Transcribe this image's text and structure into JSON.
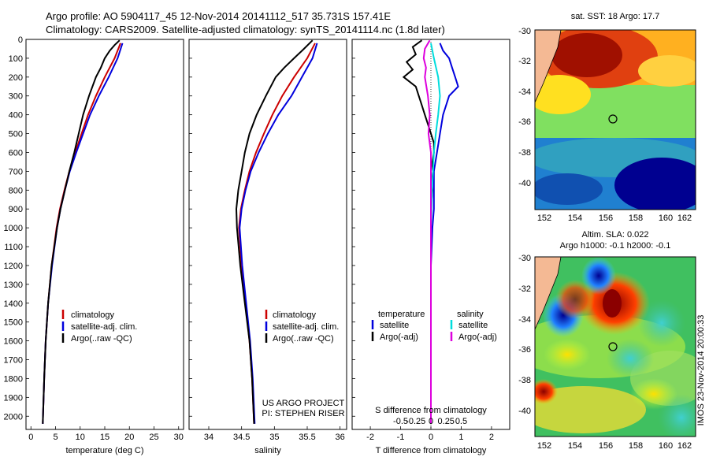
{
  "titles": {
    "line1": "Argo profile: AO 5904117_45 12-Nov-2014 20141112_517 35.731S 157.41E",
    "line2": "Climatology: CARS2009. Satellite-adjusted climatology: synTS_20141114.nc (1.8d later)"
  },
  "colors": {
    "clim": "#cc0000",
    "sat": "#0000dd",
    "argo": "#000000",
    "sal_sat": "#00dddd",
    "sal_argo": "#dd00dd",
    "land": "#f4b994"
  },
  "chart_data": [
    {
      "id": "temperature",
      "type": "line",
      "xlabel": "temperature (deg C)",
      "xlim": [
        -1,
        31
      ],
      "xticks": [
        0,
        5,
        10,
        15,
        20,
        25,
        30
      ],
      "ylim": [
        2070,
        0
      ],
      "yticks": [
        0,
        100,
        200,
        300,
        400,
        500,
        600,
        700,
        800,
        900,
        1000,
        1100,
        1200,
        1300,
        1400,
        1500,
        1600,
        1700,
        1800,
        1900,
        2000
      ],
      "legend": [
        "climatology",
        "satellite-adj. clim.",
        "Argo(..raw -QC)"
      ],
      "series": [
        {
          "name": "climatology",
          "depth": [
            20,
            100,
            200,
            300,
            400,
            500,
            600,
            700,
            800,
            900,
            1000,
            1200,
            1400,
            1600,
            1800,
            2040
          ],
          "values": [
            18.2,
            17.0,
            15.0,
            13.2,
            11.6,
            10.3,
            9.0,
            7.8,
            6.8,
            5.9,
            5.2,
            4.2,
            3.5,
            3.0,
            2.7,
            2.4
          ]
        },
        {
          "name": "satellite-adj. clim.",
          "depth": [
            20,
            100,
            200,
            300,
            400,
            500,
            600,
            700,
            800,
            900,
            1000,
            1200,
            1400,
            1600,
            1800,
            2040
          ],
          "values": [
            18.6,
            17.6,
            15.8,
            13.8,
            12.0,
            10.6,
            9.2,
            7.9,
            6.9,
            6.0,
            5.3,
            4.3,
            3.5,
            3.0,
            2.7,
            2.4
          ]
        },
        {
          "name": "Argo(..raw -QC)",
          "depth": [
            5,
            30,
            60,
            100,
            150,
            200,
            300,
            400,
            500,
            600,
            700,
            800,
            900,
            1000,
            1200,
            1400,
            1600,
            1800,
            2040
          ],
          "values": [
            18.0,
            17.0,
            16.0,
            15.0,
            14.2,
            13.2,
            11.8,
            10.6,
            9.7,
            8.8,
            7.8,
            6.9,
            6.0,
            5.3,
            4.2,
            3.5,
            3.0,
            2.7,
            2.4
          ]
        }
      ]
    },
    {
      "id": "salinity",
      "type": "line",
      "xlabel": "salinity",
      "xlim": [
        33.7,
        36.1
      ],
      "xticks": [
        34,
        34.5,
        35,
        35.5,
        36
      ],
      "xtick_labels": [
        "34",
        "34.5",
        "35",
        "35.5",
        "36"
      ],
      "ylim": [
        2070,
        0
      ],
      "legend": [
        "climatology",
        "satellite-adj. clim.",
        "Argo(..raw -QC)"
      ],
      "annotation": [
        "US ARGO PROJECT",
        "PI: STEPHEN RISER"
      ],
      "series": [
        {
          "name": "climatology",
          "depth": [
            20,
            100,
            200,
            300,
            400,
            500,
            600,
            700,
            800,
            900,
            1000,
            1200,
            1400,
            1600,
            1800,
            2040
          ],
          "values": [
            35.62,
            35.5,
            35.3,
            35.12,
            34.97,
            34.84,
            34.72,
            34.62,
            34.55,
            34.49,
            34.46,
            34.5,
            34.56,
            34.62,
            34.66,
            34.69
          ]
        },
        {
          "name": "satellite-adj. clim.",
          "depth": [
            20,
            100,
            200,
            300,
            400,
            500,
            600,
            700,
            800,
            900,
            1000,
            1200,
            1400,
            1600,
            1800,
            2040
          ],
          "values": [
            35.65,
            35.58,
            35.42,
            35.26,
            35.06,
            34.9,
            34.76,
            34.64,
            34.56,
            34.5,
            34.47,
            34.51,
            34.57,
            34.63,
            34.67,
            34.7
          ]
        },
        {
          "name": "Argo(..raw -QC)",
          "depth": [
            5,
            50,
            100,
            150,
            200,
            300,
            400,
            500,
            600,
            700,
            800,
            900,
            1000,
            1200,
            1400,
            1600,
            1800,
            2040
          ],
          "values": [
            35.58,
            35.45,
            35.3,
            35.15,
            35.02,
            34.87,
            34.73,
            34.62,
            34.55,
            34.5,
            34.45,
            34.42,
            34.43,
            34.48,
            34.55,
            34.62,
            34.66,
            34.69
          ]
        }
      ]
    },
    {
      "id": "difference",
      "type": "line",
      "xlabel": "T difference from climatology",
      "xlabel2": "S difference from climatology",
      "xlim": [
        -2.6,
        2.6
      ],
      "xticks": [
        -2,
        -1,
        0,
        1,
        2
      ],
      "s_ticks": [
        -0.5,
        -0.25,
        0,
        0.25,
        0.5
      ],
      "s_tick_labels": [
        "-0.5",
        "-0.25",
        "0",
        "0.25",
        "0.5"
      ],
      "ylim": [
        2070,
        0
      ],
      "legend_headers": [
        "temperature",
        "salinity"
      ],
      "legend": [
        "satellite",
        "Argo(-adj)",
        "satellite",
        "Argo(-adj)"
      ],
      "series": [
        {
          "name": "temperature satellite",
          "depth": [
            20,
            60,
            100,
            150,
            200,
            250,
            300,
            400,
            500,
            600,
            700,
            800,
            900,
            1000,
            1200,
            1400,
            1600,
            1800,
            2040
          ],
          "values": [
            0.3,
            0.4,
            0.6,
            0.7,
            0.8,
            0.9,
            0.6,
            0.4,
            0.3,
            0.2,
            0.1,
            0.1,
            0.1,
            0.05,
            0.0,
            0.0,
            0.0,
            0.0,
            0.0
          ]
        },
        {
          "name": "temperature Argo(-adj)",
          "depth": [
            5,
            40,
            80,
            120,
            160,
            200,
            250,
            300,
            350,
            400,
            450,
            500,
            550,
            600,
            700,
            800,
            900,
            1000,
            1200,
            1400,
            1600,
            1800,
            2040
          ],
          "values": [
            -0.3,
            -0.6,
            -0.5,
            -0.8,
            -0.6,
            -0.9,
            -0.5,
            -0.4,
            -0.3,
            -0.2,
            -0.1,
            0.0,
            0.1,
            0.1,
            0.0,
            0.05,
            0.0,
            0.0,
            0.0,
            0.0,
            0.0,
            0.0,
            0.0
          ]
        },
        {
          "name": "salinity satellite",
          "depth": [
            20,
            100,
            200,
            300,
            400,
            500,
            600,
            800,
            1000,
            1200,
            1400,
            1600,
            1800,
            2040
          ],
          "values": [
            0.0,
            0.05,
            0.12,
            0.15,
            0.12,
            0.08,
            0.05,
            0.02,
            0.0,
            0.0,
            0.0,
            0.0,
            0.0,
            0.0
          ]
        },
        {
          "name": "salinity Argo(-adj)",
          "depth": [
            5,
            50,
            100,
            150,
            200,
            300,
            400,
            500,
            600,
            800,
            1000,
            1200,
            1400,
            1600,
            1800,
            2040
          ],
          "values": [
            -0.02,
            -0.1,
            -0.12,
            -0.08,
            -0.1,
            -0.05,
            -0.02,
            -0.04,
            0.0,
            0.0,
            0.0,
            0.0,
            0.0,
            0.0,
            0.0,
            0.0
          ]
        }
      ]
    }
  ],
  "maps": {
    "sst": {
      "title": "sat. SST: 18 Argo: 17.7",
      "lon_ticks": [
        "152",
        "154",
        "156",
        "158",
        "160",
        "162"
      ],
      "lat_ticks": [
        "-30",
        "-32",
        "-34",
        "-36",
        "-38",
        "-40"
      ],
      "argo_position": {
        "lon": 157.41,
        "lat": -35.73
      }
    },
    "sla": {
      "title1": "Altim. SLA: 0.022",
      "title2": "Argo h1000: -0.1 h2000: -0.1",
      "lon_ticks": [
        "152",
        "154",
        "156",
        "158",
        "160",
        "162"
      ],
      "lat_ticks": [
        "-30",
        "-32",
        "-34",
        "-36",
        "-38",
        "-40"
      ],
      "argo_position": {
        "lon": 157.41,
        "lat": -35.73
      }
    }
  },
  "watermark": "IMOS 23-Nov-2014 20:00:33"
}
